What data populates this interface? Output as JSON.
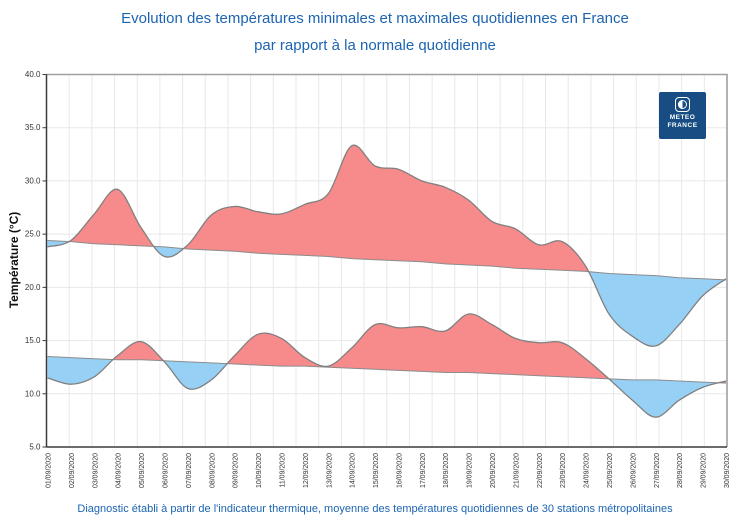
{
  "chart": {
    "title_line1": "Evolution des températures minimales et maximales quotidiennes en France",
    "title_line2": "par rapport à la normale quotidienne",
    "ylabel": "Température (°C)",
    "footnote": "Diagnostic établi à partir de l'indicateur thermique, moyenne des températures quotidiennes de 30 stations métropolitaines"
  },
  "logo": {
    "line1": "METEO",
    "line2": "FRANCE",
    "background_color": "#174D82"
  },
  "chart_data": {
    "type": "area",
    "title": "Evolution des températures minimales et maximales quotidiennes en France par rapport à la normale quotidienne",
    "xlabel": "",
    "ylabel": "Température (°C)",
    "ylim": [
      5,
      40
    ],
    "ytick_step": 5,
    "ytick_labels": [
      "5.0",
      "10.0",
      "15.0",
      "20.0",
      "25.0",
      "30.0",
      "35.0",
      "40.0"
    ],
    "grid": true,
    "legend_position": "none",
    "x": [
      "01/09/2020",
      "02/09/2020",
      "03/09/2020",
      "04/09/2020",
      "05/09/2020",
      "06/09/2020",
      "07/09/2020",
      "08/09/2020",
      "09/09/2020",
      "10/09/2020",
      "11/09/2020",
      "12/09/2020",
      "13/09/2020",
      "14/09/2020",
      "15/09/2020",
      "16/09/2020",
      "17/09/2020",
      "18/09/2020",
      "19/09/2020",
      "20/09/2020",
      "21/09/2020",
      "22/09/2020",
      "23/09/2020",
      "24/09/2020",
      "25/09/2020",
      "26/09/2020",
      "27/09/2020",
      "28/09/2020",
      "29/09/2020",
      "30/09/2020"
    ],
    "series": [
      {
        "name": "temperature_maximale",
        "values": [
          23.8,
          24.4,
          26.9,
          29.2,
          25.6,
          22.9,
          24.0,
          26.8,
          27.6,
          27.1,
          26.9,
          27.8,
          28.8,
          33.3,
          31.4,
          31.1,
          30.0,
          29.4,
          28.2,
          26.2,
          25.5,
          24.0,
          24.3,
          22.0,
          17.5,
          15.4,
          14.5,
          16.5,
          19.2,
          20.8
        ]
      },
      {
        "name": "normale_maximale",
        "values": [
          24.4,
          24.3,
          24.1,
          24.0,
          23.9,
          23.8,
          23.6,
          23.5,
          23.4,
          23.2,
          23.1,
          23.0,
          22.9,
          22.7,
          22.6,
          22.5,
          22.4,
          22.2,
          22.1,
          22.0,
          21.8,
          21.7,
          21.6,
          21.5,
          21.3,
          21.2,
          21.1,
          20.9,
          20.8,
          20.7
        ]
      },
      {
        "name": "temperature_minimale",
        "values": [
          11.5,
          10.9,
          11.6,
          13.6,
          14.9,
          13.0,
          10.5,
          11.3,
          13.6,
          15.6,
          15.2,
          13.4,
          12.6,
          14.3,
          16.5,
          16.2,
          16.3,
          15.9,
          17.5,
          16.5,
          15.2,
          14.8,
          14.8,
          13.3,
          11.4,
          9.4,
          7.8,
          9.4,
          10.6,
          11.2
        ]
      },
      {
        "name": "normale_minimale",
        "values": [
          13.5,
          13.4,
          13.3,
          13.2,
          13.2,
          13.1,
          13.0,
          12.9,
          12.8,
          12.7,
          12.6,
          12.6,
          12.5,
          12.4,
          12.3,
          12.2,
          12.1,
          12.0,
          12.0,
          11.9,
          11.8,
          11.7,
          11.6,
          11.5,
          11.4,
          11.3,
          11.3,
          11.2,
          11.1,
          11.0
        ]
      }
    ],
    "colors": {
      "above_normal_fill": "#F78A8A",
      "below_normal_fill": "#96D0F5",
      "curve_stroke": "#808080",
      "normal_stroke": "#8C8C8C",
      "grid": "#E8E8E8",
      "axis": "#3A3A3A",
      "frame": "#A0A0A0",
      "title": "#1C64B2"
    }
  }
}
